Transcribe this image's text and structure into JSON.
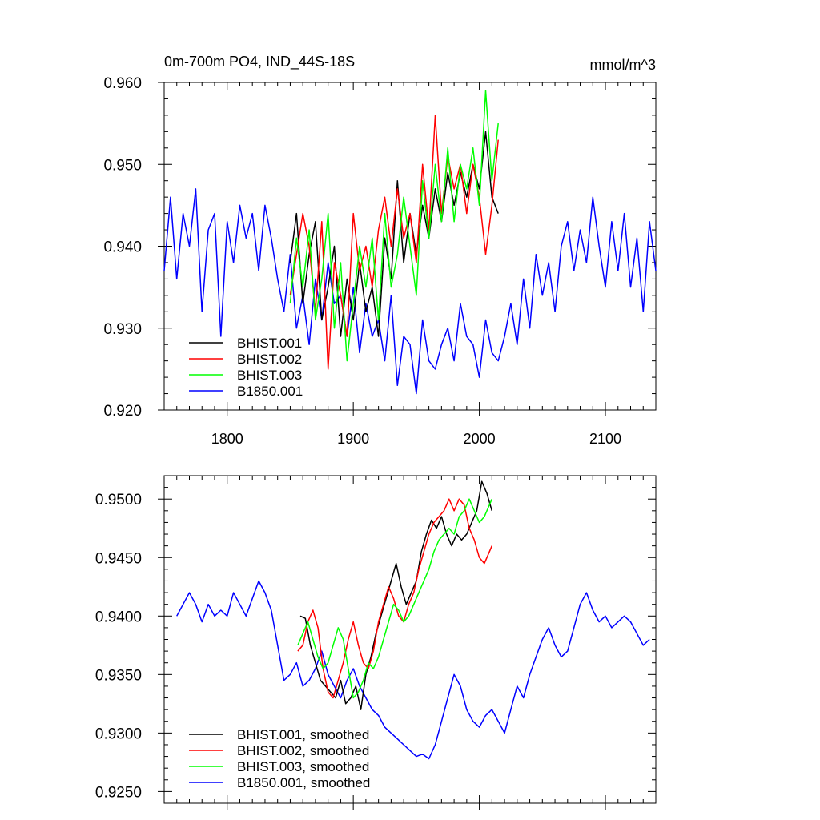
{
  "chart_data": [
    {
      "type": "line",
      "title": "0m-700m PO4, IND_44S-18S",
      "units_label": "mmol/m^3",
      "xlabel": "",
      "ylabel": "",
      "xlim": [
        1750,
        2140
      ],
      "ylim": [
        0.92,
        0.96
      ],
      "x_ticks": [
        1800,
        1900,
        2000,
        2100
      ],
      "x_tick_labels": [
        "1800",
        "1900",
        "2000",
        "2100"
      ],
      "y_ticks": [
        0.92,
        0.93,
        0.94,
        0.95,
        0.96
      ],
      "y_tick_labels": [
        "0.920",
        "0.930",
        "0.940",
        "0.950",
        "0.960"
      ],
      "grid": false,
      "legend_position": "bottom-left",
      "series": [
        {
          "name": "BHIST.001",
          "color": "#000000",
          "x": [
            1850,
            1855,
            1860,
            1865,
            1870,
            1875,
            1880,
            1885,
            1890,
            1895,
            1900,
            1905,
            1910,
            1915,
            1920,
            1925,
            1930,
            1935,
            1940,
            1945,
            1950,
            1955,
            1960,
            1965,
            1970,
            1975,
            1980,
            1985,
            1990,
            1995,
            2000,
            2005,
            2010,
            2015
          ],
          "y": [
            0.938,
            0.944,
            0.933,
            0.939,
            0.943,
            0.931,
            0.935,
            0.94,
            0.929,
            0.936,
            0.931,
            0.938,
            0.932,
            0.935,
            0.929,
            0.941,
            0.936,
            0.948,
            0.938,
            0.944,
            0.939,
            0.945,
            0.941,
            0.947,
            0.943,
            0.949,
            0.945,
            0.949,
            0.946,
            0.95,
            0.947,
            0.954,
            0.946,
            0.944
          ]
        },
        {
          "name": "BHIST.002",
          "color": "#ff0000",
          "x": [
            1850,
            1855,
            1860,
            1865,
            1870,
            1875,
            1880,
            1885,
            1890,
            1895,
            1900,
            1905,
            1910,
            1915,
            1920,
            1925,
            1930,
            1935,
            1940,
            1945,
            1950,
            1955,
            1960,
            1965,
            1970,
            1975,
            1980,
            1985,
            1990,
            1995,
            2000,
            2005,
            2010,
            2015
          ],
          "y": [
            0.934,
            0.939,
            0.944,
            0.94,
            0.932,
            0.943,
            0.925,
            0.938,
            0.934,
            0.929,
            0.944,
            0.937,
            0.94,
            0.935,
            0.942,
            0.946,
            0.94,
            0.947,
            0.941,
            0.944,
            0.938,
            0.95,
            0.942,
            0.956,
            0.944,
            0.951,
            0.947,
            0.95,
            0.944,
            0.95,
            0.946,
            0.939,
            0.945,
            0.953
          ]
        },
        {
          "name": "BHIST.003",
          "color": "#00ff00",
          "x": [
            1850,
            1855,
            1860,
            1865,
            1870,
            1875,
            1880,
            1885,
            1890,
            1895,
            1900,
            1905,
            1910,
            1915,
            1920,
            1925,
            1930,
            1935,
            1940,
            1945,
            1950,
            1955,
            1960,
            1965,
            1970,
            1975,
            1980,
            1985,
            1990,
            1995,
            2000,
            2005,
            2010,
            2015
          ],
          "y": [
            0.933,
            0.941,
            0.935,
            0.942,
            0.931,
            0.936,
            0.944,
            0.93,
            0.938,
            0.926,
            0.933,
            0.94,
            0.935,
            0.941,
            0.931,
            0.944,
            0.935,
            0.939,
            0.946,
            0.94,
            0.934,
            0.948,
            0.941,
            0.95,
            0.943,
            0.952,
            0.943,
            0.95,
            0.947,
            0.952,
            0.945,
            0.959,
            0.948,
            0.955
          ]
        },
        {
          "name": "B1850.001",
          "color": "#0000ff",
          "x": [
            1750,
            1755,
            1760,
            1765,
            1770,
            1775,
            1780,
            1785,
            1790,
            1795,
            1800,
            1805,
            1810,
            1815,
            1820,
            1825,
            1830,
            1835,
            1840,
            1845,
            1850,
            1855,
            1860,
            1865,
            1870,
            1875,
            1880,
            1885,
            1890,
            1895,
            1900,
            1905,
            1910,
            1915,
            1920,
            1925,
            1930,
            1935,
            1940,
            1945,
            1950,
            1955,
            1960,
            1965,
            1970,
            1975,
            1980,
            1985,
            1990,
            1995,
            2000,
            2005,
            2010,
            2015,
            2020,
            2025,
            2030,
            2035,
            2040,
            2045,
            2050,
            2055,
            2060,
            2065,
            2070,
            2075,
            2080,
            2085,
            2090,
            2095,
            2100,
            2105,
            2110,
            2115,
            2120,
            2125,
            2130,
            2135,
            2140
          ],
          "y": [
            0.937,
            0.946,
            0.936,
            0.944,
            0.94,
            0.947,
            0.932,
            0.942,
            0.944,
            0.929,
            0.943,
            0.938,
            0.945,
            0.941,
            0.944,
            0.937,
            0.945,
            0.941,
            0.936,
            0.932,
            0.939,
            0.93,
            0.934,
            0.928,
            0.936,
            0.931,
            0.938,
            0.933,
            0.934,
            0.929,
            0.935,
            0.927,
            0.933,
            0.929,
            0.931,
            0.926,
            0.934,
            0.923,
            0.929,
            0.928,
            0.922,
            0.931,
            0.926,
            0.925,
            0.928,
            0.93,
            0.926,
            0.933,
            0.929,
            0.928,
            0.924,
            0.931,
            0.927,
            0.926,
            0.929,
            0.933,
            0.928,
            0.936,
            0.93,
            0.939,
            0.934,
            0.938,
            0.932,
            0.94,
            0.943,
            0.937,
            0.942,
            0.938,
            0.946,
            0.94,
            0.935,
            0.943,
            0.937,
            0.944,
            0.935,
            0.941,
            0.932,
            0.943,
            0.937
          ]
        }
      ]
    },
    {
      "type": "line",
      "title": "",
      "xlabel": "",
      "ylabel": "",
      "xlim": [
        1750,
        2140
      ],
      "ylim": [
        0.924,
        0.952
      ],
      "x_ticks": [
        1800,
        1900,
        2000,
        2100
      ],
      "y_ticks": [
        0.925,
        0.93,
        0.935,
        0.94,
        0.945,
        0.95
      ],
      "y_tick_labels": [
        "0.9250",
        "0.9300",
        "0.9350",
        "0.9400",
        "0.9450",
        "0.9500"
      ],
      "grid": false,
      "legend_position": "bottom-left",
      "series": [
        {
          "name": "BHIST.001, smoothed",
          "color": "#000000",
          "x": [
            1858,
            1862,
            1866,
            1870,
            1874,
            1878,
            1882,
            1886,
            1890,
            1894,
            1898,
            1902,
            1906,
            1910,
            1914,
            1918,
            1922,
            1926,
            1930,
            1934,
            1938,
            1942,
            1946,
            1950,
            1954,
            1958,
            1962,
            1966,
            1970,
            1974,
            1978,
            1982,
            1986,
            1990,
            1994,
            1998,
            2002,
            2006,
            2010
          ],
          "y": [
            0.94,
            0.9398,
            0.9375,
            0.936,
            0.9345,
            0.934,
            0.9335,
            0.933,
            0.9345,
            0.9325,
            0.933,
            0.934,
            0.932,
            0.935,
            0.9365,
            0.9385,
            0.94,
            0.9415,
            0.943,
            0.9445,
            0.9425,
            0.941,
            0.942,
            0.943,
            0.9455,
            0.947,
            0.9482,
            0.9475,
            0.9485,
            0.947,
            0.946,
            0.947,
            0.9465,
            0.947,
            0.948,
            0.949,
            0.9515,
            0.9505,
            0.949
          ]
        },
        {
          "name": "BHIST.002, smoothed",
          "color": "#ff0000",
          "x": [
            1856,
            1860,
            1864,
            1868,
            1872,
            1876,
            1880,
            1884,
            1888,
            1892,
            1896,
            1900,
            1904,
            1908,
            1912,
            1916,
            1920,
            1924,
            1928,
            1932,
            1936,
            1940,
            1944,
            1948,
            1952,
            1956,
            1960,
            1964,
            1968,
            1972,
            1976,
            1980,
            1984,
            1988,
            1992,
            1996,
            2000,
            2004,
            2008,
            2010
          ],
          "y": [
            0.937,
            0.9375,
            0.9395,
            0.9405,
            0.939,
            0.9355,
            0.9335,
            0.933,
            0.9345,
            0.936,
            0.938,
            0.9395,
            0.9375,
            0.936,
            0.9355,
            0.937,
            0.9395,
            0.941,
            0.9425,
            0.9415,
            0.94,
            0.9395,
            0.941,
            0.942,
            0.944,
            0.9455,
            0.947,
            0.948,
            0.9485,
            0.949,
            0.95,
            0.949,
            0.95,
            0.9495,
            0.9475,
            0.9465,
            0.945,
            0.9445,
            0.9455,
            0.946
          ]
        },
        {
          "name": "BHIST.003, smoothed",
          "color": "#00ff00",
          "x": [
            1856,
            1860,
            1864,
            1868,
            1872,
            1876,
            1880,
            1884,
            1888,
            1892,
            1896,
            1900,
            1904,
            1908,
            1912,
            1916,
            1920,
            1924,
            1928,
            1932,
            1936,
            1940,
            1944,
            1948,
            1952,
            1956,
            1960,
            1964,
            1968,
            1972,
            1976,
            1980,
            1984,
            1988,
            1992,
            1996,
            2000,
            2004,
            2008,
            2010
          ],
          "y": [
            0.9375,
            0.9385,
            0.9395,
            0.938,
            0.9365,
            0.9355,
            0.936,
            0.9375,
            0.939,
            0.938,
            0.9355,
            0.933,
            0.9335,
            0.9345,
            0.936,
            0.9355,
            0.9365,
            0.938,
            0.9395,
            0.941,
            0.9405,
            0.9395,
            0.94,
            0.941,
            0.942,
            0.943,
            0.944,
            0.9455,
            0.9465,
            0.947,
            0.9475,
            0.947,
            0.9485,
            0.949,
            0.95,
            0.949,
            0.948,
            0.9485,
            0.9495,
            0.95
          ]
        },
        {
          "name": "B1850.001, smoothed",
          "color": "#0000ff",
          "x": [
            1760,
            1765,
            1770,
            1775,
            1780,
            1785,
            1790,
            1795,
            1800,
            1805,
            1810,
            1815,
            1820,
            1825,
            1830,
            1835,
            1840,
            1845,
            1850,
            1855,
            1860,
            1865,
            1870,
            1875,
            1880,
            1885,
            1890,
            1895,
            1900,
            1905,
            1910,
            1915,
            1920,
            1925,
            1930,
            1935,
            1940,
            1945,
            1950,
            1955,
            1960,
            1965,
            1970,
            1975,
            1980,
            1985,
            1990,
            1995,
            2000,
            2005,
            2010,
            2015,
            2020,
            2025,
            2030,
            2035,
            2040,
            2045,
            2050,
            2055,
            2060,
            2065,
            2070,
            2075,
            2080,
            2085,
            2090,
            2095,
            2100,
            2105,
            2110,
            2115,
            2120,
            2125,
            2130,
            2135
          ],
          "y": [
            0.94,
            0.941,
            0.942,
            0.941,
            0.9395,
            0.941,
            0.94,
            0.9405,
            0.94,
            0.942,
            0.941,
            0.94,
            0.9415,
            0.943,
            0.942,
            0.9405,
            0.9375,
            0.9345,
            0.935,
            0.936,
            0.934,
            0.9345,
            0.9355,
            0.937,
            0.935,
            0.934,
            0.933,
            0.9345,
            0.9355,
            0.934,
            0.933,
            0.932,
            0.9315,
            0.9305,
            0.93,
            0.9295,
            0.929,
            0.9285,
            0.928,
            0.9282,
            0.9278,
            0.929,
            0.931,
            0.933,
            0.935,
            0.934,
            0.932,
            0.931,
            0.9305,
            0.9315,
            0.932,
            0.931,
            0.93,
            0.932,
            0.934,
            0.933,
            0.935,
            0.9365,
            0.938,
            0.939,
            0.9375,
            0.9365,
            0.937,
            0.939,
            0.941,
            0.942,
            0.9405,
            0.9395,
            0.94,
            0.939,
            0.9395,
            0.94,
            0.9395,
            0.9385,
            0.9375,
            0.938
          ]
        }
      ]
    }
  ]
}
